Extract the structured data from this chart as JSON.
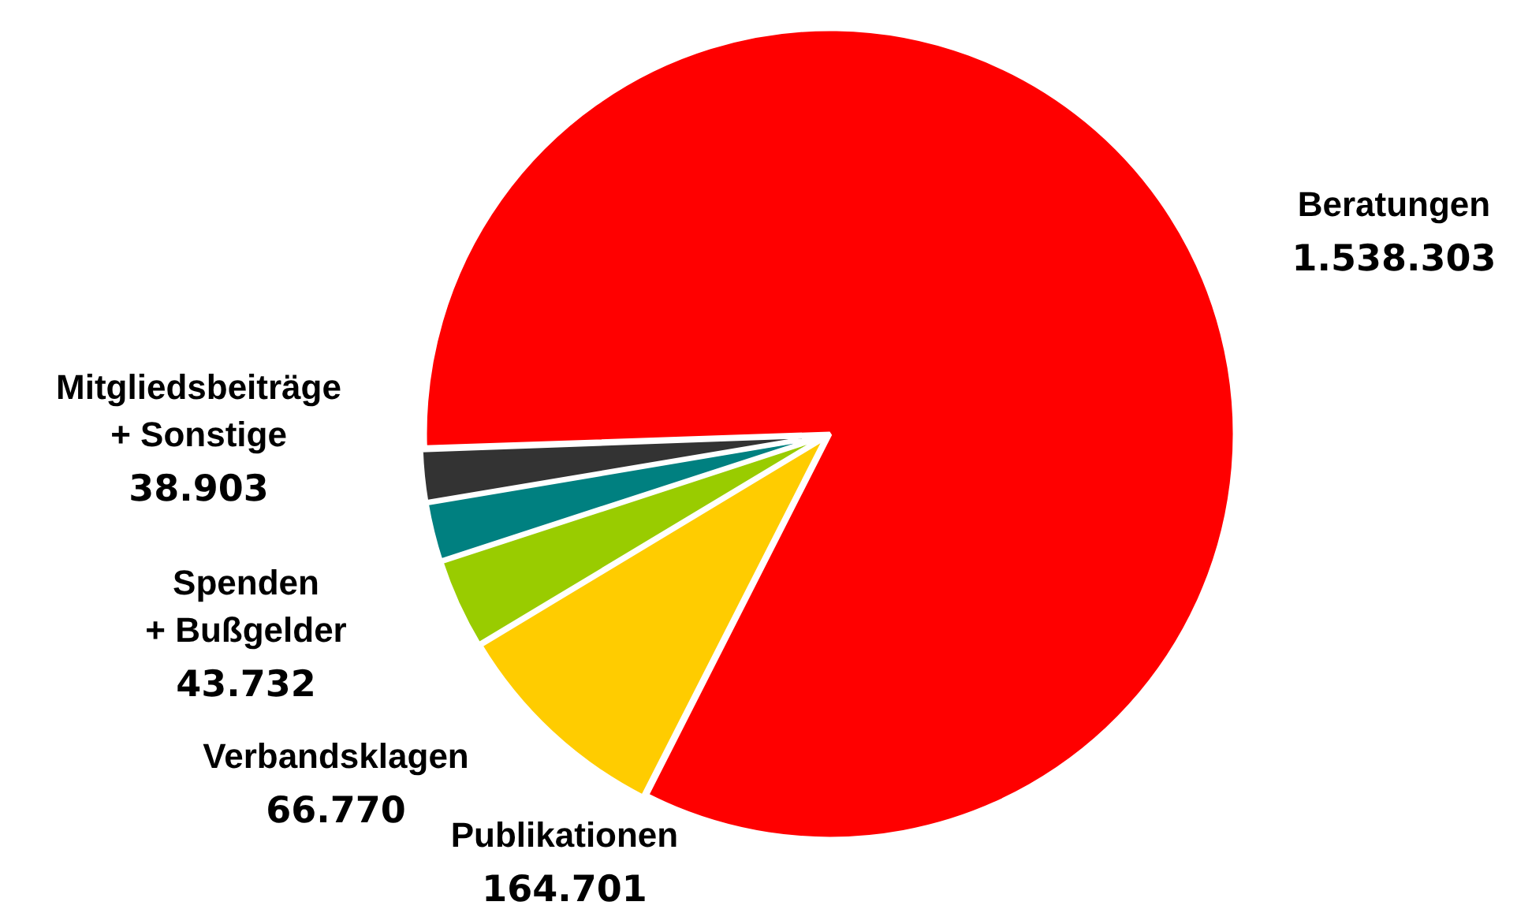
{
  "chart_data": {
    "type": "pie",
    "categories": [
      "Beratungen",
      "Publikationen",
      "Verbandsklagen",
      "Spenden\n+ Bußgelder",
      "Mitgliedsbeiträge\n+ Sonstige"
    ],
    "values": [
      1538303,
      164701,
      66770,
      43732,
      38903
    ],
    "value_labels": [
      "1.538.303",
      "164.701",
      "66.770",
      "43.732",
      "38.903"
    ],
    "colors": [
      "#ff0000",
      "#ffcc00",
      "#99cc00",
      "#008080",
      "#333333"
    ],
    "legend": false
  }
}
